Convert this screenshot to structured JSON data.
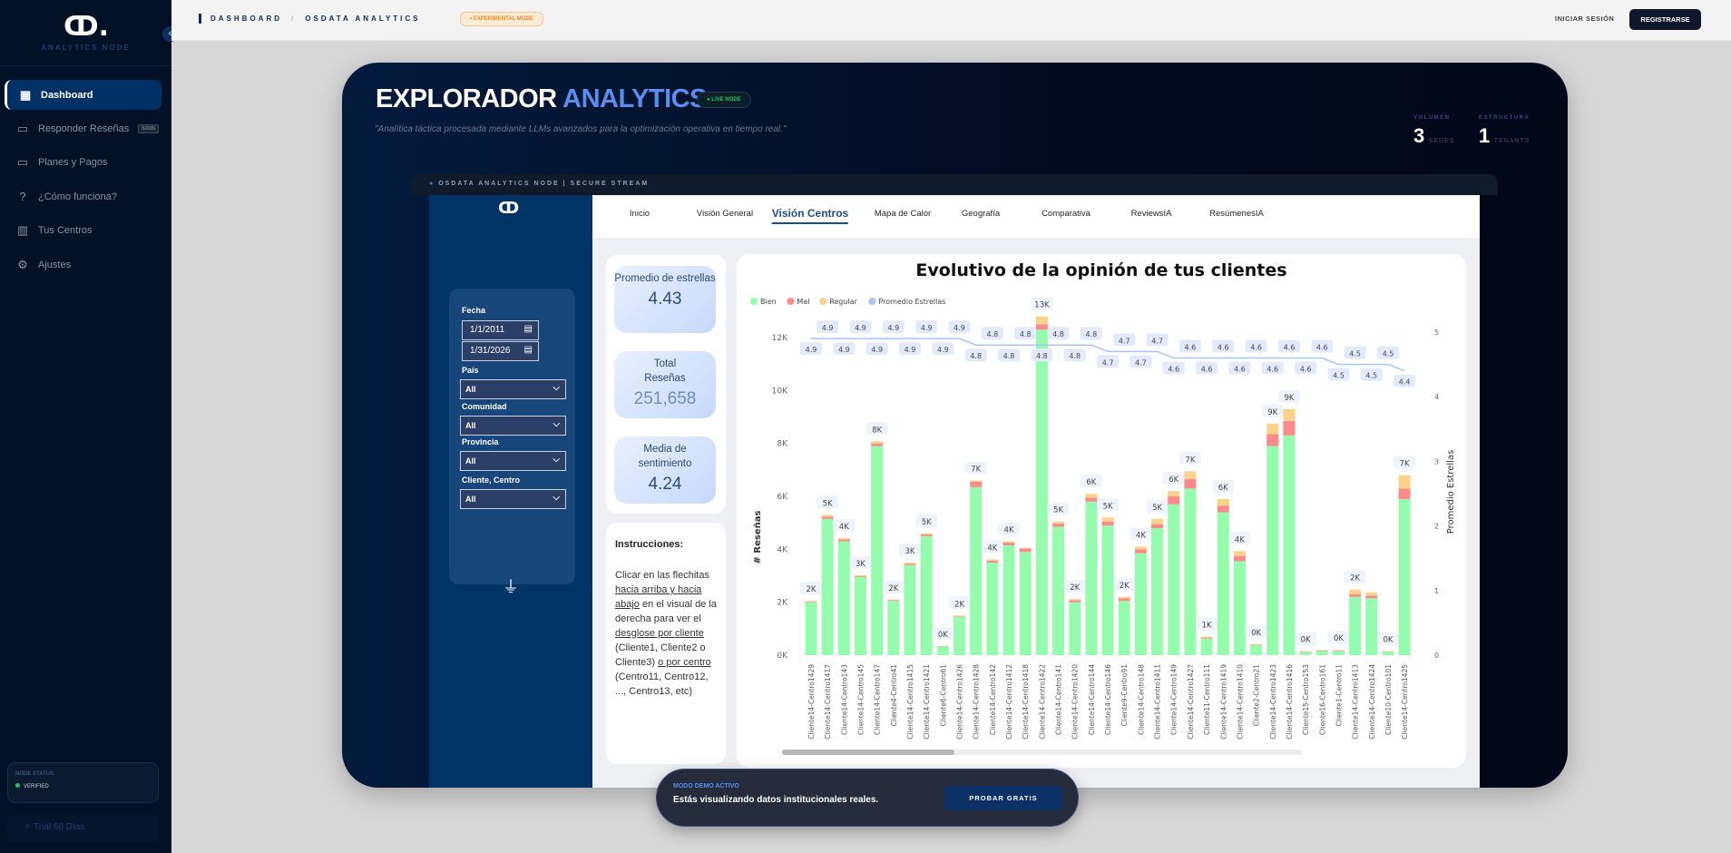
{
  "sidebar": {
    "brand": "ANALYTICS NODE",
    "items": [
      {
        "label": "Dashboard",
        "icon": "grid-icon",
        "active": true
      },
      {
        "label": "Responder Reseñas",
        "icon": "message-icon",
        "badge": "SOON"
      },
      {
        "label": "Planes y Pagos",
        "icon": "credit-card-icon"
      },
      {
        "label": "¿Cómo funciona?",
        "icon": "help-circle-icon"
      },
      {
        "label": "Tus Centros",
        "icon": "building-icon"
      },
      {
        "label": "Ajustes",
        "icon": "gear-icon"
      }
    ],
    "node_status": {
      "title": "NODE STATUS",
      "value": "VERIFIED",
      "color": "#22c55e"
    },
    "trial": "Trial 60 Días"
  },
  "topbar": {
    "breadcrumb": [
      "DASHBOARD",
      "OSDATA ANALYTICS"
    ],
    "separator": "/",
    "badge": "EXPERIMENTAL MODE",
    "login": "INICIAR SESIÓN",
    "register": "REGISTRARSE"
  },
  "hero": {
    "title_a": "EXPLORADOR",
    "title_b": "ANALYTICS",
    "live": "LIVE NODE",
    "subtitle": "\"Analítica táctica procesada mediante LLMs avanzados para la optimización operativa en tiempo real.\"",
    "stats": [
      {
        "label": "VOLUMEN",
        "value": "3",
        "unit": "SEDES"
      },
      {
        "label": "ESTRUCTURA",
        "value": "1",
        "unit": "TENANTS"
      }
    ],
    "frame_title": "OSDATA ANALYTICS NODE | SECURE STREAM"
  },
  "report": {
    "tabs": [
      "Inicio",
      "Visión General",
      "Visión Centros",
      "Mapa de Calor",
      "Geografía",
      "Comparativa",
      "ReviewsIA",
      "ResúmenesIA"
    ],
    "active_tab": "Visión Centros",
    "filters": {
      "fecha_label": "Fecha",
      "fecha_from": "1/1/2011",
      "fecha_to": "1/31/2026",
      "pais_label": "País",
      "pais": "All",
      "comunidad_label": "Comunidad",
      "comunidad": "All",
      "provincia_label": "Provincia",
      "provincia": "All",
      "cliente_label": "Cliente, Centro",
      "cliente": "All"
    },
    "kpis": [
      {
        "title": "Promedio de estrellas",
        "value": "4.43"
      },
      {
        "title": "Total Reseñas",
        "value": "251,658"
      },
      {
        "title": "Media de sentimiento",
        "value": "4.24"
      }
    ],
    "instructions": {
      "title": "Instrucciones:",
      "p1": "Clicar en las flechitas ",
      "u1": "hacia arriba y hacia abajo",
      "p2": " en el visual de la derecha para ver el ",
      "u2": "desglose por cliente",
      "p3": " (Cliente1, Cliente2 o Cliente3) ",
      "u3": "o por centro",
      "p4": " (Centro11, Centro12, ..., Centro13, etc)"
    }
  },
  "chart_data": {
    "type": "bar",
    "title": "Evolutivo de la opinión de tus clientes",
    "ylabel": "# Reseñas",
    "y2label": "Promedio Estrellas",
    "ylim": [
      0,
      12800
    ],
    "yticks": [
      "0K",
      "2K",
      "4K",
      "6K",
      "8K",
      "10K",
      "12K"
    ],
    "y2lim": [
      0,
      5
    ],
    "y2ticks": [
      "0",
      "1",
      "2",
      "3",
      "4",
      "5"
    ],
    "legend_position": "top-left",
    "categories": [
      "Cliente14-Centro1429",
      "Cliente14-Centro1417",
      "Cliente14-Centro143",
      "Cliente14-Centro145",
      "Cliente14-Centro147",
      "Cliente4-Centro41",
      "Cliente14-Centro1415",
      "Cliente14-Centro1421",
      "Cliente6-Centro61",
      "Cliente14-Centro1426",
      "Cliente14-Centro1428",
      "Cliente14-Centro142",
      "Cliente14-Centro1412",
      "Cliente14-Centro1418",
      "Cliente14-Centro1422",
      "Cliente14-Centro141",
      "Cliente14-Centro1420",
      "Cliente14-Centro144",
      "Cliente14-Centro146",
      "Cliente9-Centro91",
      "Cliente14-Centro148",
      "Cliente14-Centro1411",
      "Cliente14-Centro149",
      "Cliente14-Centro1427",
      "Cliente11-Centro111",
      "Cliente14-Centro1419",
      "Cliente14-Centro1410",
      "Cliente2-Centro21",
      "Cliente14-Centro1423",
      "Cliente14-Centro1416",
      "Cliente15-Centro153",
      "Cliente16-Centro161",
      "Cliente1-Centro11",
      "Cliente14-Centro1413",
      "Cliente14-Centro1424",
      "Cliente10-Centro101",
      "Cliente14-Centro1425"
    ],
    "series": [
      {
        "name": "Bien",
        "color": "#94fcac",
        "values": [
          2000,
          5150,
          4300,
          2950,
          7900,
          2050,
          3400,
          4500,
          330,
          1450,
          6350,
          3500,
          4150,
          3900,
          12300,
          4850,
          2000,
          5800,
          4900,
          2050,
          3850,
          4800,
          5700,
          6300,
          620,
          5400,
          3550,
          380,
          7900,
          8300,
          130,
          170,
          170,
          2200,
          2150,
          130,
          5900
        ]
      },
      {
        "name": "Mal",
        "color": "#fb8b8b",
        "values": [
          20,
          80,
          70,
          30,
          100,
          30,
          50,
          60,
          10,
          20,
          200,
          70,
          100,
          130,
          200,
          120,
          80,
          150,
          150,
          100,
          150,
          150,
          300,
          350,
          30,
          250,
          200,
          20,
          450,
          550,
          10,
          10,
          10,
          100,
          100,
          10,
          400
        ]
      },
      {
        "name": "Regular",
        "color": "#fcd28a",
        "values": [
          30,
          70,
          50,
          40,
          80,
          20,
          50,
          40,
          10,
          30,
          50,
          50,
          50,
          20,
          300,
          80,
          40,
          150,
          150,
          50,
          100,
          200,
          200,
          300,
          50,
          250,
          180,
          20,
          400,
          450,
          10,
          20,
          20,
          180,
          120,
          10,
          500
        ]
      }
    ],
    "line": {
      "name": "Promedio Estrellas",
      "color": "#a9c4f5",
      "values": [
        4.9,
        4.9,
        4.9,
        4.9,
        4.9,
        4.9,
        4.9,
        4.9,
        4.9,
        4.9,
        4.8,
        4.8,
        4.8,
        4.8,
        4.8,
        4.8,
        4.8,
        4.8,
        4.7,
        4.7,
        4.7,
        4.7,
        4.6,
        4.6,
        4.6,
        4.6,
        4.6,
        4.6,
        4.6,
        4.6,
        4.6,
        4.6,
        4.5,
        4.5,
        4.5,
        4.5,
        4.4
      ]
    },
    "bar_labels": [
      "2K",
      "5K",
      "4K",
      "3K",
      "8K",
      "2K",
      "3K",
      "5K",
      "0K",
      "2K",
      "7K",
      "4K",
      "4K",
      null,
      "13K",
      "5K",
      "2K",
      "6K",
      "5K",
      "2K",
      "4K",
      "5K",
      "6K",
      "7K",
      "1K",
      "6K",
      "4K",
      "0K",
      "9K",
      "9K",
      "0K",
      null,
      "0K",
      "2K",
      null,
      "0K",
      "7K"
    ]
  },
  "banner": {
    "kicker": "MODO DEMO ACTIVO",
    "message": "Estás visualizando datos institucionales reales.",
    "button": "PROBAR GRATIS"
  }
}
